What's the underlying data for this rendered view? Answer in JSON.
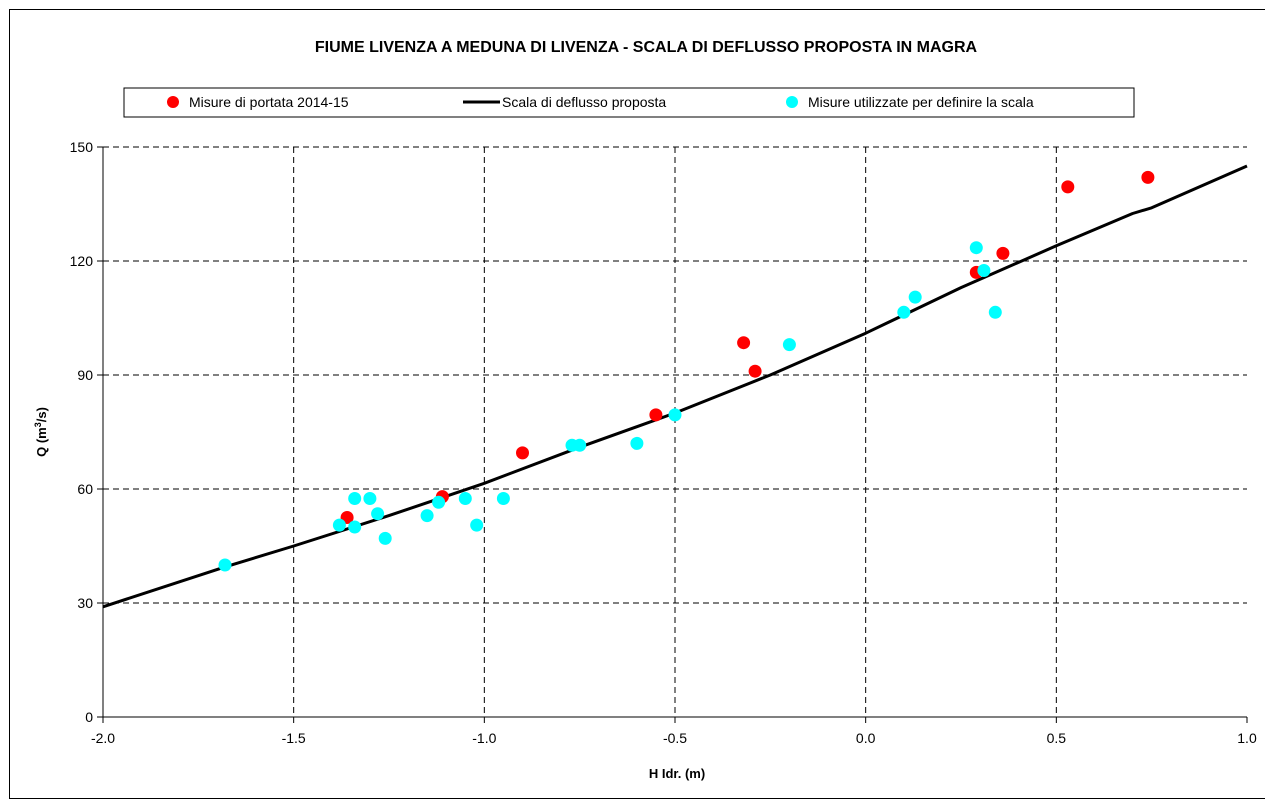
{
  "chart_data": {
    "type": "scatter",
    "title": "FIUME LIVENZA A MEDUNA DI LIVENZA - SCALA DI DEFLUSSO PROPOSTA IN MAGRA",
    "xlabel": "H Idr. (m)",
    "ylabel": {
      "prefix": "Q (m",
      "sup": "3",
      "suffix": "/s)"
    },
    "xlim": [
      -2.0,
      1.0
    ],
    "ylim": [
      0,
      150
    ],
    "x_ticks": [
      "-2.0",
      "-1.5",
      "-1.0",
      "-0.5",
      "0.0",
      "0.5",
      "1.0"
    ],
    "y_ticks": [
      "0",
      "30",
      "60",
      "90",
      "120",
      "150"
    ],
    "grid": true,
    "legend_position": "top",
    "series": [
      {
        "name": "Misure di portata 2014-15",
        "kind": "scatter",
        "color": "#ff0000",
        "points": [
          [
            -1.36,
            52.5
          ],
          [
            -1.11,
            58.0
          ],
          [
            -0.9,
            69.5
          ],
          [
            -0.55,
            79.5
          ],
          [
            -0.32,
            98.5
          ],
          [
            -0.29,
            91.0
          ],
          [
            0.29,
            117.0
          ],
          [
            0.36,
            122.0
          ],
          [
            0.53,
            139.5
          ],
          [
            0.74,
            142.0
          ]
        ]
      },
      {
        "name": "Scala di deflusso proposta",
        "kind": "line",
        "color": "#000000",
        "points": [
          [
            -2.0,
            29.0
          ],
          [
            -1.68,
            39.5
          ],
          [
            -1.5,
            45.0
          ],
          [
            -1.25,
            53.0
          ],
          [
            -1.0,
            61.5
          ],
          [
            -0.75,
            71.0
          ],
          [
            -0.5,
            80.0
          ],
          [
            -0.25,
            90.0
          ],
          [
            0.0,
            101.0
          ],
          [
            0.25,
            113.0
          ],
          [
            0.5,
            124.0
          ],
          [
            0.7,
            132.5
          ],
          [
            0.75,
            134.0
          ],
          [
            1.0,
            145.0
          ]
        ]
      },
      {
        "name": "Misure utilizzate per definire la scala",
        "kind": "scatter",
        "color": "#00ffff",
        "points": [
          [
            -1.68,
            40.0
          ],
          [
            -1.38,
            50.5
          ],
          [
            -1.34,
            57.5
          ],
          [
            -1.34,
            50.0
          ],
          [
            -1.3,
            57.5
          ],
          [
            -1.28,
            53.5
          ],
          [
            -1.26,
            47.0
          ],
          [
            -1.15,
            53.0
          ],
          [
            -1.12,
            56.5
          ],
          [
            -1.05,
            57.5
          ],
          [
            -1.02,
            50.5
          ],
          [
            -0.95,
            57.5
          ],
          [
            -0.77,
            71.5
          ],
          [
            -0.75,
            71.5
          ],
          [
            -0.6,
            72.0
          ],
          [
            -0.5,
            79.5
          ],
          [
            -0.2,
            98.0
          ],
          [
            0.1,
            106.5
          ],
          [
            0.13,
            110.5
          ],
          [
            0.29,
            123.5
          ],
          [
            0.31,
            117.5
          ],
          [
            0.34,
            106.5
          ]
        ]
      }
    ]
  }
}
